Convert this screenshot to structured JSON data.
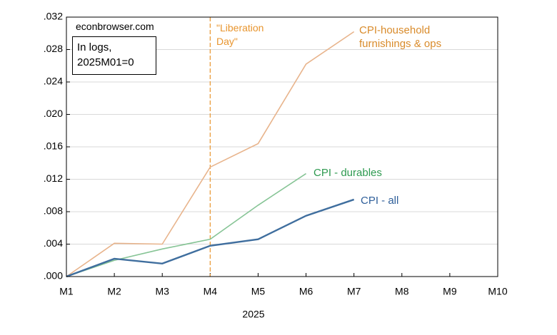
{
  "chart_data": {
    "type": "line",
    "categories": [
      "M1",
      "M2",
      "M3",
      "M4",
      "M5",
      "M6",
      "M7",
      "M8",
      "M9",
      "M10"
    ],
    "xlabel": "2025",
    "series": [
      {
        "name": "CPI-household furnishings & ops",
        "color": "#e8b48c",
        "label_color": "#d98b2b",
        "width": 1.6,
        "values": [
          0,
          0.0041,
          0.004,
          0.0135,
          0.0164,
          0.0262,
          0.0302,
          null,
          null,
          null
        ]
      },
      {
        "name": "CPI - durables",
        "color": "#86c495",
        "label_color": "#2e9a50",
        "width": 1.6,
        "values": [
          0,
          0.002,
          0.0034,
          0.0046,
          0.0088,
          0.0127,
          null,
          null,
          null,
          null
        ]
      },
      {
        "name": "CPI - all",
        "color": "#3f6e9e",
        "label_color": "#2f5f9a",
        "width": 2.4,
        "values": [
          0,
          0.0022,
          0.0016,
          0.0038,
          0.0046,
          0.0075,
          0.0095,
          null,
          null,
          null
        ]
      }
    ],
    "ylim": [
      0,
      0.032
    ],
    "yticks": [
      {
        "value": 0,
        "label": ".000"
      },
      {
        "value": 0.004,
        "label": ".004"
      },
      {
        "value": 0.008,
        "label": ".008"
      },
      {
        "value": 0.012,
        "label": ".012"
      },
      {
        "value": 0.016,
        "label": ".016"
      },
      {
        "value": 0.02,
        "label": ".020"
      },
      {
        "value": 0.024,
        "label": ".024"
      },
      {
        "value": 0.028,
        "label": ".028"
      },
      {
        "value": 0.032,
        "label": ".032"
      }
    ],
    "grid": true,
    "annotations": {
      "source": "econbrowser.com",
      "note": "In logs, 2025M01=0"
    },
    "vline": {
      "x": "M4",
      "label": "\"Liberation Day\"",
      "color": "#e8952e"
    }
  }
}
